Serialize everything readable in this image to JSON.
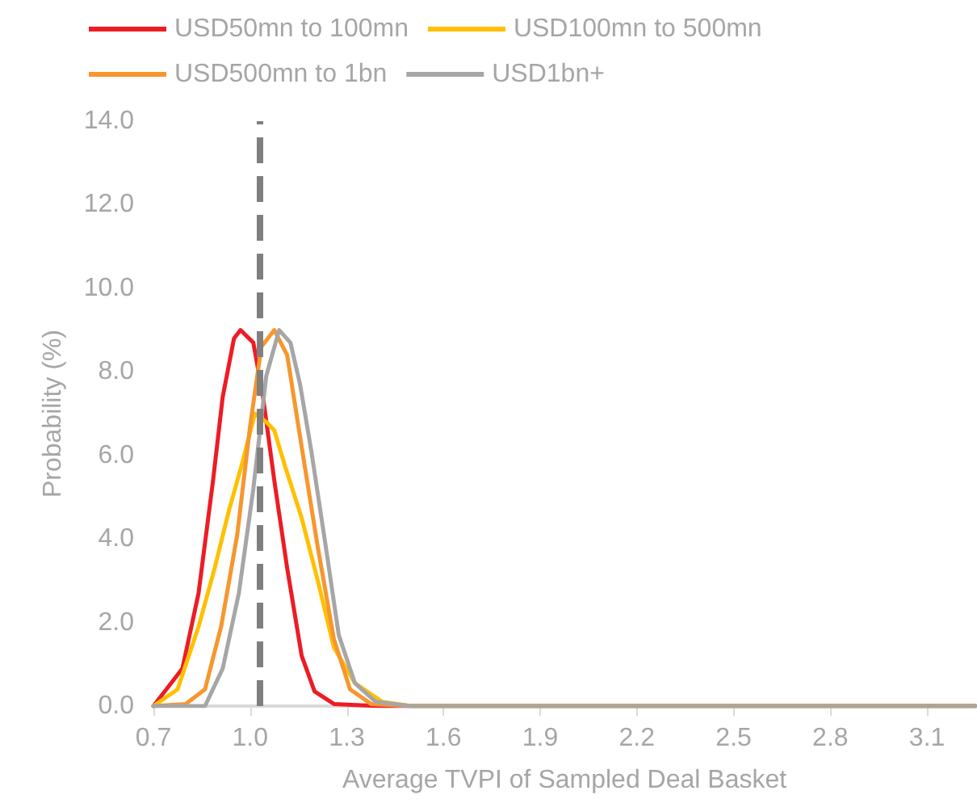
{
  "chart_data": {
    "type": "line",
    "xlabel": "Average TVPI of Sampled Deal Basket",
    "ylabel": "Probability (%)",
    "xlim": [
      0.7,
      3.25
    ],
    "xticks": [
      0.7,
      {
        "value": 1.0,
        "label": "1.0"
      },
      1.3,
      1.6,
      1.9,
      2.2,
      2.5,
      2.8,
      3.1
    ],
    "ylim": [
      0,
      14
    ],
    "yticks": [
      {
        "value": 0,
        "label": "0.0"
      },
      {
        "value": 2,
        "label": "2.0"
      },
      {
        "value": 4,
        "label": "4.0"
      },
      {
        "value": 6,
        "label": "6.0"
      },
      {
        "value": 8,
        "label": "8.0"
      },
      {
        "value": 10,
        "label": "10.0"
      },
      {
        "value": 12,
        "label": "12.0"
      },
      {
        "value": 14,
        "label": "14.0"
      }
    ],
    "grid": false,
    "legend": "top",
    "marker": "none",
    "line_style": "solid",
    "ref_lines": [
      {
        "axis": "x",
        "value": 1.03,
        "color": "#7f7f7f",
        "line_style": "dashed"
      }
    ],
    "series": [
      {
        "name": "USD50mn to 100mn",
        "color": "#ed1c24",
        "x": [
          0.7,
          0.79,
          0.84,
          0.885,
          0.915,
          0.95,
          0.97,
          1.01,
          1.04,
          1.075,
          1.115,
          1.16,
          1.2,
          1.26,
          1.4,
          3.25
        ],
        "values": [
          0,
          0.9,
          2.7,
          5.4,
          7.4,
          8.8,
          9.0,
          8.7,
          7.4,
          5.4,
          3.3,
          1.2,
          0.35,
          0.05,
          0,
          0
        ]
      },
      {
        "name": "USD100mn to 500mn",
        "color": "#ffc000",
        "x": [
          0.7,
          0.775,
          0.84,
          0.89,
          0.935,
          0.975,
          1.015,
          1.05,
          1.075,
          1.11,
          1.16,
          1.21,
          1.26,
          1.325,
          1.41,
          1.5,
          3.25
        ],
        "values": [
          0,
          0.4,
          1.9,
          3.3,
          4.7,
          5.8,
          7.0,
          6.8,
          6.6,
          5.7,
          4.5,
          3.0,
          1.4,
          0.55,
          0.1,
          0,
          0
        ]
      },
      {
        "name": "USD500mn to 1bn",
        "color": "#f7962f",
        "x": [
          0.7,
          0.8,
          0.86,
          0.91,
          0.96,
          1.0,
          1.035,
          1.075,
          1.115,
          1.16,
          1.21,
          1.26,
          1.31,
          1.375,
          1.5,
          3.25
        ],
        "values": [
          0,
          0.05,
          0.4,
          1.9,
          4.1,
          6.7,
          8.6,
          9.0,
          8.4,
          6.2,
          3.8,
          1.6,
          0.4,
          0.05,
          0,
          0
        ]
      },
      {
        "name": "USD1bn+",
        "color": "#a6a6a6",
        "x": [
          0.7,
          0.86,
          0.915,
          0.965,
          1.01,
          1.05,
          1.09,
          1.125,
          1.155,
          1.19,
          1.235,
          1.275,
          1.325,
          1.39,
          1.5,
          3.25
        ],
        "values": [
          0,
          0,
          0.9,
          2.7,
          5.2,
          7.9,
          9.0,
          8.7,
          7.7,
          6.1,
          3.8,
          1.7,
          0.55,
          0.1,
          0,
          0
        ]
      }
    ]
  }
}
